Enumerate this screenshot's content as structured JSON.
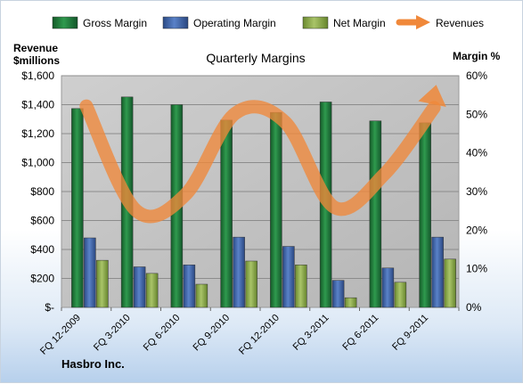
{
  "chart_data": {
    "type": "bar",
    "title": "Quarterly Margins",
    "company": "Hasbro Inc.",
    "left_axis": {
      "label_line1": "Revenue",
      "label_line2": "$millions",
      "ylim": [
        0,
        1600
      ],
      "ticks": [
        0,
        200,
        400,
        600,
        800,
        1000,
        1200,
        1400,
        1600
      ],
      "tick_labels": [
        "$-",
        "$200",
        "$400",
        "$600",
        "$800",
        "$1,000",
        "$1,200",
        "$1,400",
        "$1,600"
      ]
    },
    "right_axis": {
      "label": "Margin %",
      "ylim": [
        0,
        60
      ],
      "ticks": [
        0,
        10,
        20,
        30,
        40,
        50,
        60
      ],
      "tick_labels": [
        "0%",
        "10%",
        "20%",
        "30%",
        "40%",
        "50%",
        "60%"
      ]
    },
    "categories": [
      "FQ 12-2009",
      "FQ 3-2010",
      "FQ 6-2010",
      "FQ 9-2010",
      "FQ 12-2010",
      "FQ 3-2011",
      "FQ 6-2011",
      "FQ 9-2011"
    ],
    "series": [
      {
        "name": "Gross Margin",
        "axis": "right",
        "kind": "bar",
        "color": "#1f7a3a",
        "values": [
          51.5,
          54.5,
          52.5,
          48.5,
          50.5,
          53.2,
          48.3,
          47.8
        ]
      },
      {
        "name": "Operating Margin",
        "axis": "right",
        "kind": "bar",
        "color": "#3d63a8",
        "values": [
          18.0,
          10.5,
          11.0,
          18.2,
          15.8,
          7.0,
          10.2,
          18.2
        ]
      },
      {
        "name": "Net Margin",
        "axis": "right",
        "kind": "bar",
        "color": "#8aa84a",
        "values": [
          12.2,
          8.8,
          6.0,
          12.0,
          11.0,
          2.5,
          6.5,
          12.5
        ]
      },
      {
        "name": "Revenues",
        "axis": "left",
        "kind": "line",
        "color": "#f0883a",
        "values": [
          1390,
          670,
          780,
          1340,
          1280,
          690,
          920,
          1380
        ]
      }
    ],
    "legend_position": "top",
    "grid": true
  }
}
